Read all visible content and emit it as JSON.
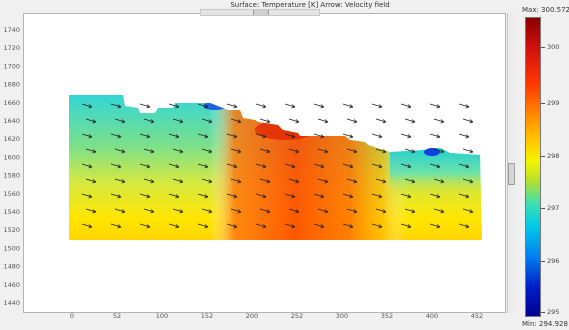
{
  "plot": {
    "title": "Surface: Temperature [K]  Arrow: Velocity field",
    "y_ticks": [
      "1740",
      "1720",
      "1700",
      "1680",
      "1660",
      "1640",
      "1620",
      "1600",
      "1580",
      "1560",
      "1540",
      "1520",
      "1500",
      "1480",
      "1460",
      "1440"
    ],
    "x_ticks": [
      "0",
      "52",
      "100",
      "152",
      "200",
      "252",
      "300",
      "352",
      "400",
      "452"
    ]
  },
  "colorbar": {
    "max_label": "Max: 300.572",
    "min_label": "Min: 294.928",
    "ticks": [
      "300",
      "299",
      "298",
      "297",
      "296",
      "295"
    ],
    "colors": [
      "#8a0000",
      "#ff3800",
      "#ffcc00",
      "#40e0b0",
      "#0080f0",
      "#000090"
    ]
  }
}
